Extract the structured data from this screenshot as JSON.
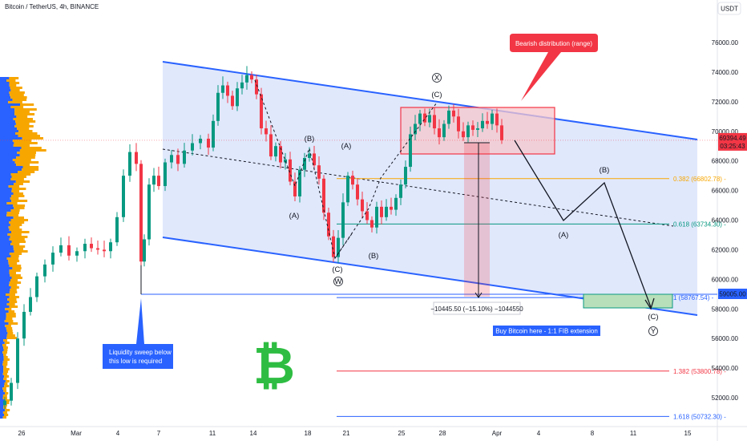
{
  "header": {
    "title": "Bitcoin / TetherUS, 4h, BINANCE",
    "currency": "USDT"
  },
  "price_tag": {
    "price": "69394.49",
    "countdown": "03:25:43",
    "color": "#f23645"
  },
  "low_tag": {
    "price": "59005.00",
    "color": "#2962ff"
  },
  "annotations": {
    "bearish_distribution": "Bearish distribution (range)",
    "liquidity_line1": "Liquidity sweep below",
    "liquidity_line2": "this low is required",
    "buy_bitcoin": "Buy Bitcoin here - 1:1 FIB extension",
    "measure": "−10445.50 (−15.10%) −1044550",
    "bitcoin_logo": "₿"
  },
  "fib_levels": [
    {
      "ratio": "0.382",
      "price": "66802.78",
      "color": "#f7a600"
    },
    {
      "ratio": "0.618",
      "price": "63734.30",
      "color": "#089981"
    },
    {
      "ratio": "1",
      "price": "58767.54",
      "color": "#2962ff"
    },
    {
      "ratio": "1.382",
      "price": "53800.78",
      "color": "#f23645"
    },
    {
      "ratio": "1.618",
      "price": "50732.30",
      "color": "#2962ff"
    }
  ],
  "wave_labels": {
    "X": "X",
    "W": "W",
    "Y": "Y",
    "A": "(A)",
    "B": "(B)",
    "C": "(C)"
  },
  "colors": {
    "up": "#089981",
    "down": "#f23645",
    "channel_fill": "#dbe4fb",
    "channel_line": "#2962ff",
    "volume_profile_buy": "#2962ff",
    "volume_profile_sell": "#f7a600",
    "bitcoin_green": "#2ebd42"
  },
  "chart_data": {
    "type": "candlestick",
    "title": "Bitcoin / TetherUS, 4h, BINANCE",
    "y_axis_ticks": [
      "76000.00",
      "74000.00",
      "72000.00",
      "70000.00",
      "68000.00",
      "66000.00",
      "64000.00",
      "62000.00",
      "60000.00",
      "58000.00",
      "56000.00",
      "54000.00",
      "52000.00"
    ],
    "x_axis_ticks": [
      "26",
      "Mar",
      "4",
      "7",
      "11",
      "14",
      "18",
      "21",
      "25",
      "28",
      "Apr",
      "4",
      "8",
      "11",
      "15"
    ],
    "ylim": [
      51000,
      78000
    ],
    "grid": false,
    "last_price": 69394.49,
    "wave_points": [
      {
        "label": "(A)",
        "price": 65300
      },
      {
        "label": "(B)",
        "price": 69200
      },
      {
        "label": "(C)",
        "price": 61100
      },
      {
        "label": "(A)",
        "price": 68600
      },
      {
        "label": "(B)",
        "price": 63800
      },
      {
        "label": "(C)",
        "price": 71800
      }
    ],
    "projection": [
      {
        "label": "(A)",
        "price": 64000
      },
      {
        "label": "(B)",
        "price": 66700
      },
      {
        "label": "(C)",
        "price": 58100
      }
    ]
  }
}
